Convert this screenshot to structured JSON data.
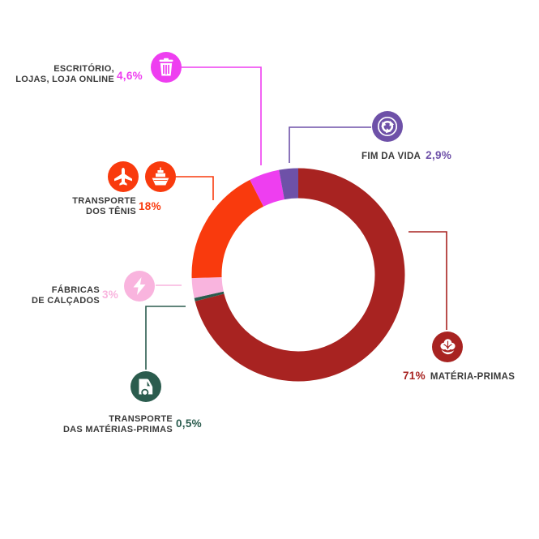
{
  "palette": {
    "materias_primas": "#a82321",
    "transporte_materias_primas": "#2b5c4e",
    "fabricas_calcados": "#f9b4de",
    "transporte_tenis": "#f93a0d",
    "escritorio_lojas": "#ee3ef0",
    "fim_da_vida": "#6e51a8",
    "label_text": "#3a3a3a",
    "background": "#ffffff"
  },
  "chart_data": {
    "type": "pie",
    "subtype": "donut",
    "unit": "%",
    "start_angle_deg": 0,
    "direction": "clockwise",
    "legend_position": "around-chart-callouts",
    "segments": [
      {
        "key": "materias-primas",
        "label": "MATÉRIA-PRIMAS",
        "value": 71,
        "display_value": "71%",
        "color": "#a82321",
        "icon": "cotton"
      },
      {
        "key": "transporte-materias-primas",
        "label": "TRANSPORTE DAS MATÉRIAS-PRIMAS",
        "value": 0.5,
        "display_value": "0,5%",
        "color": "#2b5c4e",
        "icon": "truck"
      },
      {
        "key": "fabricas-de-calcados",
        "label": "FÁBRICAS DE CALÇADOS",
        "value": 3,
        "display_value": "3%",
        "color": "#f9b4de",
        "icon": "lightning-bolt"
      },
      {
        "key": "transporte-dos-tenis",
        "label": "TRANSPORTE DOS TÊNIS",
        "value": 18,
        "display_value": "18%",
        "color": "#f93a0d",
        "icon": "airplane-and-ship"
      },
      {
        "key": "escritorio-lojas-loja-online",
        "label": "ESCRITÓRIO, LOJAS, LOJA ONLINE",
        "value": 4.6,
        "display_value": "4,6%",
        "color": "#ee3ef0",
        "icon": "trash-can"
      },
      {
        "key": "fim-da-vida",
        "label": "FIM DA VIDA",
        "value": 2.9,
        "display_value": "2,9%",
        "color": "#6e51a8",
        "icon": "recycle"
      }
    ]
  },
  "callouts": {
    "escritorio": {
      "label": "ESCRITÓRIO,\nLOJAS, LOJA ONLINE",
      "value": "4,6%"
    },
    "fim_da_vida": {
      "label": "FIM DA VIDA",
      "value": "2,9%"
    },
    "transporte_tenis": {
      "label": "TRANSPORTE\nDOS TÊNIS",
      "value": "18%"
    },
    "fabricas": {
      "label": "FÁBRICAS\nDE CALÇADOS",
      "value": "3%"
    },
    "transporte_mp": {
      "label": "TRANSPORTE\nDAS MATÉRIAS-PRIMAS",
      "value": "0,5%"
    },
    "materias_primas": {
      "label": "MATÉRIA-PRIMAS",
      "value": "71%"
    }
  }
}
